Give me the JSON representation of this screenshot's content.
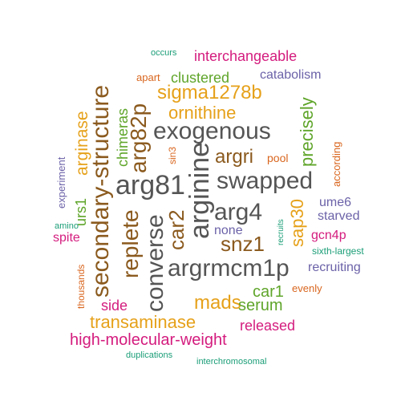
{
  "words": [
    {
      "text": "exogenous",
      "color": "#555555"
    },
    {
      "text": "arg81",
      "color": "#555555"
    },
    {
      "text": "swapped",
      "color": "#555555"
    },
    {
      "text": "arginine",
      "color": "#555555"
    },
    {
      "text": "arg4",
      "color": "#555555"
    },
    {
      "text": "argrmcm1p",
      "color": "#555555"
    },
    {
      "text": "converse",
      "color": "#555555"
    },
    {
      "text": "secondary-structure",
      "color": "#8B5A1E"
    },
    {
      "text": "arg82p",
      "color": "#8B5A1E"
    },
    {
      "text": "replete",
      "color": "#8B5A1E"
    },
    {
      "text": "car2",
      "color": "#8B5A1E"
    },
    {
      "text": "argri",
      "color": "#8B5A1E"
    },
    {
      "text": "snz1",
      "color": "#8B5A1E"
    },
    {
      "text": "sigma1278b",
      "color": "#E6A11A"
    },
    {
      "text": "ornithine",
      "color": "#E6A11A"
    },
    {
      "text": "arginase",
      "color": "#E6A11A"
    },
    {
      "text": "mads",
      "color": "#E6A11A"
    },
    {
      "text": "transaminase",
      "color": "#E6A11A"
    },
    {
      "text": "sap30",
      "color": "#E6A11A"
    },
    {
      "text": "interchangeable",
      "color": "#D41C7E"
    },
    {
      "text": "high-molecular-weight",
      "color": "#D41C7E"
    },
    {
      "text": "released",
      "color": "#D41C7E"
    },
    {
      "text": "side",
      "color": "#D41C7E"
    },
    {
      "text": "spite",
      "color": "#D41C7E"
    },
    {
      "text": "gcn4p",
      "color": "#D41C7E"
    },
    {
      "text": "clustered",
      "color": "#5FA52A"
    },
    {
      "text": "precisely",
      "color": "#5FA52A"
    },
    {
      "text": "chimeras",
      "color": "#5FA52A"
    },
    {
      "text": "serum",
      "color": "#5FA52A"
    },
    {
      "text": "car1",
      "color": "#5FA52A"
    },
    {
      "text": "urs1",
      "color": "#5FA52A"
    },
    {
      "text": "catabolism",
      "color": "#6B62A8"
    },
    {
      "text": "none",
      "color": "#6B62A8"
    },
    {
      "text": "ume6",
      "color": "#6B62A8"
    },
    {
      "text": "starved",
      "color": "#6B62A8"
    },
    {
      "text": "recruiting",
      "color": "#6B62A8"
    },
    {
      "text": "experiment",
      "color": "#6B62A8"
    },
    {
      "text": "apart",
      "color": "#D9661F"
    },
    {
      "text": "pool",
      "color": "#D9661F"
    },
    {
      "text": "according",
      "color": "#D9661F"
    },
    {
      "text": "sin3",
      "color": "#D9661F"
    },
    {
      "text": "evenly",
      "color": "#D9661F"
    },
    {
      "text": "thousands",
      "color": "#D9661F"
    },
    {
      "text": "occurs",
      "color": "#1B9E77"
    },
    {
      "text": "amino",
      "color": "#1B9E77"
    },
    {
      "text": "recruits",
      "color": "#1B9E77"
    },
    {
      "text": "sixth-largest",
      "color": "#1B9E77"
    },
    {
      "text": "duplications",
      "color": "#1B9E77"
    },
    {
      "text": "interchromosomal",
      "color": "#1B9E77"
    }
  ]
}
